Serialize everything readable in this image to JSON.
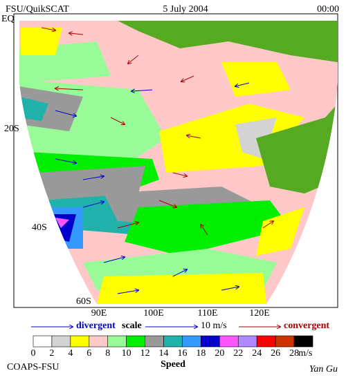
{
  "header": {
    "left": "FSU/QuikSCAT",
    "center": "5 July 2004",
    "right": "00:00"
  },
  "map": {
    "lat_labels": [
      "EQ",
      "20S",
      "40S",
      "60S"
    ],
    "lon_labels": [
      "90E",
      "100E",
      "110E",
      "120E"
    ]
  },
  "legend": {
    "divergent": "divergent",
    "scale": "scale",
    "scale_value": "10 m/s",
    "convergent": "convergent",
    "colorbar": {
      "colors": [
        "#ffffff",
        "#d3d3d3",
        "#ffff00",
        "#ffc8c8",
        "#98fb98",
        "#00ee00",
        "#999999",
        "#20b2aa",
        "#3399ff",
        "#0000cd",
        "#ff55ff",
        "#b088ff",
        "#ff0000",
        "#cc3300",
        "#000000"
      ],
      "ticks": [
        0,
        2,
        4,
        6,
        8,
        10,
        12,
        14,
        16,
        18,
        20,
        22,
        24,
        26,
        28
      ],
      "unit": "m/s",
      "label": "Speed"
    }
  },
  "footer": {
    "left": "COAPS-FSU",
    "right": "Yan Gu"
  }
}
